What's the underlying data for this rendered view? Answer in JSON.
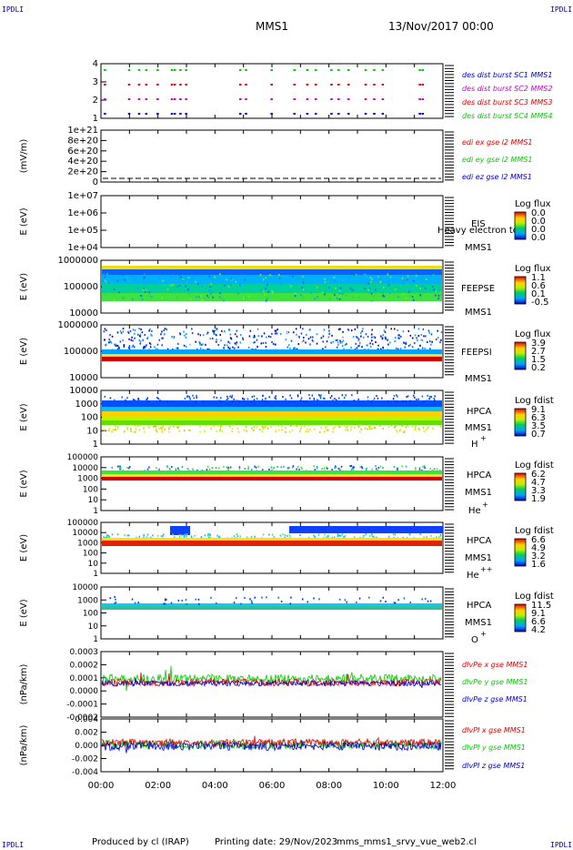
{
  "corners": {
    "tl": "IPDLI",
    "tr": "IPDLI",
    "bl": "IPDLI",
    "br": "IPDLI"
  },
  "header": {
    "mission": "MMS1",
    "date": "13/Nov/2017 00:00"
  },
  "footer": {
    "produced": "Produced by cl (IRAP)",
    "printing": "Printing date: 29/Nov/2023",
    "file": "mms_mms1_srvy_vue_web2.cl"
  },
  "time_ticks": [
    "00:00",
    "02:00",
    "04:00",
    "06:00",
    "08:00",
    "10:00",
    "12:00"
  ],
  "colors": {
    "red": "#e00000",
    "green": "#00cc00",
    "blue": "#0000cc",
    "magenta": "#cc00cc"
  },
  "chart_data": [
    {
      "type": "scatter",
      "name": "burst",
      "ylim": [
        0.5,
        4.5
      ],
      "yticks": [
        "4",
        "3",
        "2",
        "1"
      ],
      "legend": [
        {
          "label": "des dist burst SC1 MMS1",
          "color": "#0000cc"
        },
        {
          "label": "des dist burst SC2 MMS2",
          "color": "#cc00cc"
        },
        {
          "label": "des dist burst SC3 MMS3",
          "color": "#e00000"
        },
        {
          "label": "des dist burst SC4 MMS4",
          "color": "#00cc00"
        }
      ],
      "intervals_hours": [
        0.1,
        0.95,
        1.3,
        1.55,
        1.95,
        2.45,
        2.55,
        2.75,
        2.95,
        4.85,
        5.05,
        5.95,
        6.75,
        7.2,
        7.5,
        8.05,
        8.3,
        8.65,
        9.25,
        9.55,
        9.85,
        11.15,
        11.25
      ]
    },
    {
      "type": "line",
      "name": "edi",
      "ylabel": "(mV/m)",
      "yticks": [
        "1e+21",
        "8e+20",
        "6e+20",
        "4e+20",
        "2e+20",
        "0"
      ],
      "legend": [
        {
          "label": "edi ex gse l2 MMS1",
          "color": "#e00000"
        },
        {
          "label": "edi ey gse l2 MMS1",
          "color": "#00cc00"
        },
        {
          "label": "edi ez gse l2 MMS1",
          "color": "#0000cc"
        }
      ]
    },
    {
      "type": "heatmap",
      "name": "eis",
      "ylabel": "E (eV)",
      "yticks": [
        "1e+07",
        "1e+06",
        "1e+05",
        "1e+04"
      ],
      "instrument": "EIS",
      "spacecraft": "MMS1",
      "overlay": "Heavy electron to",
      "scale_title": "Log flux",
      "scale_ticks": [
        "0.0",
        "0.0",
        "0.0",
        "0.0"
      ]
    },
    {
      "type": "heatmap",
      "name": "feepse",
      "ylabel": "E (eV)",
      "yticks": [
        "1000000",
        "100000",
        "10000"
      ],
      "instrument": "FEEPSE",
      "spacecraft": "MMS1",
      "scale_title": "Log flux",
      "scale_ticks": [
        "1.1",
        "0.6",
        "0.1",
        "-0.5"
      ]
    },
    {
      "type": "heatmap",
      "name": "feepsi",
      "ylabel": "E (eV)",
      "yticks": [
        "1000000",
        "100000",
        "10000"
      ],
      "instrument": "FEEPSI",
      "spacecraft": "MMS1",
      "scale_title": "Log flux",
      "scale_ticks": [
        "3.9",
        "2.7",
        "1.5",
        "0.2"
      ]
    },
    {
      "type": "heatmap",
      "name": "hpca-h",
      "ylabel": "E (eV)",
      "yticks": [
        "10000",
        "1000",
        "100",
        "10",
        "1"
      ],
      "instrument": "HPCA",
      "spacecraft": "MMS1",
      "species": "H",
      "charge": "+",
      "scale_title": "Log fdist",
      "scale_ticks": [
        "9.1",
        "6.3",
        "3.5",
        "0.7"
      ]
    },
    {
      "type": "heatmap",
      "name": "hpca-he",
      "ylabel": "E (eV)",
      "yticks": [
        "100000",
        "10000",
        "1000",
        "100",
        "10",
        "1"
      ],
      "instrument": "HPCA",
      "spacecraft": "MMS1",
      "species": "He",
      "charge": "+",
      "scale_title": "Log fdist",
      "scale_ticks": [
        "6.2",
        "4.7",
        "3.3",
        "1.9"
      ]
    },
    {
      "type": "heatmap",
      "name": "hpca-hepp",
      "ylabel": "E (eV)",
      "yticks": [
        "100000",
        "10000",
        "1000",
        "100",
        "10",
        "1"
      ],
      "instrument": "HPCA",
      "spacecraft": "MMS1",
      "species": "He",
      "charge": "++",
      "scale_title": "Log fdist",
      "scale_ticks": [
        "6.6",
        "4.9",
        "3.2",
        "1.6"
      ]
    },
    {
      "type": "heatmap",
      "name": "hpca-o",
      "ylabel": "E (eV)",
      "yticks": [
        "10000",
        "1000",
        "100",
        "10",
        "1"
      ],
      "instrument": "HPCA",
      "spacecraft": "MMS1",
      "species": "O",
      "charge": "+",
      "scale_title": "Log fdist",
      "scale_ticks": [
        "11.5",
        "9.1",
        "6.6",
        "4.2"
      ]
    },
    {
      "type": "line",
      "name": "divpe",
      "ylabel": "(nPa/km)",
      "ylim": [
        -0.0002,
        0.0003
      ],
      "yticks": [
        "0.0003",
        "0.0002",
        "0.0001",
        "0.0000",
        "-0.0001",
        "-0.0002"
      ],
      "legend": [
        {
          "label": "dIvPe x gse MMS1",
          "color": "#e00000"
        },
        {
          "label": "dIvPe y gse MMS1",
          "color": "#00cc00"
        },
        {
          "label": "dIvPe z gse MMS1",
          "color": "#0000cc"
        }
      ]
    },
    {
      "type": "line",
      "name": "divpi",
      "ylabel": "(nPa/km)",
      "ylim": [
        -0.004,
        0.004
      ],
      "yticks": [
        "0.004",
        "0.002",
        "0.000",
        "-0.002",
        "-0.004"
      ],
      "legend": [
        {
          "label": "dIvPI x gse MMS1",
          "color": "#e00000"
        },
        {
          "label": "dIvPI y gse MMS1",
          "color": "#00cc00"
        },
        {
          "label": "dIvPI z gse MMS1",
          "color": "#0000cc"
        }
      ]
    }
  ]
}
